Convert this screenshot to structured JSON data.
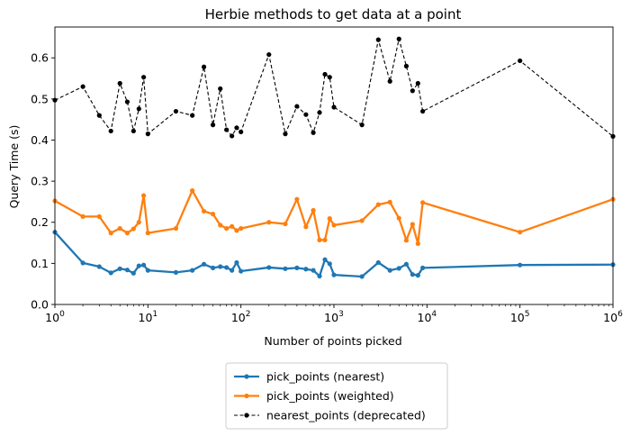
{
  "chart_data": {
    "type": "line",
    "title": "Herbie methods to get data at a point",
    "xlabel": "Number of points picked",
    "ylabel": "Query Time (s)",
    "xscale": "log",
    "xlim": [
      1,
      1000000
    ],
    "ylim": [
      0,
      0.675
    ],
    "grid": false,
    "legend_position": "below-center",
    "xticks": [
      {
        "value": 1,
        "base": "10",
        "exp": "0"
      },
      {
        "value": 10,
        "base": "10",
        "exp": "1"
      },
      {
        "value": 100,
        "base": "10",
        "exp": "2"
      },
      {
        "value": 1000,
        "base": "10",
        "exp": "3"
      },
      {
        "value": 10000,
        "base": "10",
        "exp": "4"
      },
      {
        "value": 100000,
        "base": "10",
        "exp": "5"
      },
      {
        "value": 1000000,
        "base": "10",
        "exp": "6"
      }
    ],
    "yticks": [
      {
        "value": 0,
        "label": "0.0"
      },
      {
        "value": 0.1,
        "label": "0.1"
      },
      {
        "value": 0.2,
        "label": "0.2"
      },
      {
        "value": 0.3,
        "label": "0.3"
      },
      {
        "value": 0.4,
        "label": "0.4"
      },
      {
        "value": 0.5,
        "label": "0.5"
      },
      {
        "value": 0.6,
        "label": "0.6"
      }
    ],
    "series": [
      {
        "name": "pick_points (nearest)",
        "color": "#1f77b4",
        "style": "solid",
        "points": [
          [
            1,
            0.176
          ],
          [
            2,
            0.101
          ],
          [
            3,
            0.092
          ],
          [
            4,
            0.077
          ],
          [
            5,
            0.087
          ],
          [
            6,
            0.084
          ],
          [
            7,
            0.076
          ],
          [
            8,
            0.094
          ],
          [
            9,
            0.096
          ],
          [
            10,
            0.083
          ],
          [
            20,
            0.078
          ],
          [
            30,
            0.083
          ],
          [
            40,
            0.098
          ],
          [
            50,
            0.089
          ],
          [
            60,
            0.092
          ],
          [
            70,
            0.09
          ],
          [
            80,
            0.083
          ],
          [
            90,
            0.102
          ],
          [
            100,
            0.081
          ],
          [
            200,
            0.09
          ],
          [
            300,
            0.087
          ],
          [
            400,
            0.089
          ],
          [
            500,
            0.086
          ],
          [
            600,
            0.083
          ],
          [
            700,
            0.069
          ],
          [
            800,
            0.109
          ],
          [
            900,
            0.099
          ],
          [
            1000,
            0.072
          ],
          [
            2000,
            0.068
          ],
          [
            3000,
            0.102
          ],
          [
            4000,
            0.083
          ],
          [
            5000,
            0.088
          ],
          [
            6000,
            0.098
          ],
          [
            7000,
            0.073
          ],
          [
            8000,
            0.071
          ],
          [
            9000,
            0.089
          ],
          [
            100000,
            0.096
          ],
          [
            1000000,
            0.097
          ]
        ]
      },
      {
        "name": "pick_points (weighted)",
        "color": "#ff7f0e",
        "style": "solid",
        "points": [
          [
            1,
            0.252
          ],
          [
            2,
            0.214
          ],
          [
            3,
            0.214
          ],
          [
            4,
            0.174
          ],
          [
            5,
            0.185
          ],
          [
            6,
            0.174
          ],
          [
            7,
            0.184
          ],
          [
            8,
            0.2
          ],
          [
            9,
            0.265
          ],
          [
            10,
            0.174
          ],
          [
            20,
            0.185
          ],
          [
            30,
            0.277
          ],
          [
            40,
            0.227
          ],
          [
            50,
            0.22
          ],
          [
            60,
            0.193
          ],
          [
            70,
            0.185
          ],
          [
            80,
            0.19
          ],
          [
            90,
            0.18
          ],
          [
            100,
            0.185
          ],
          [
            200,
            0.2
          ],
          [
            300,
            0.196
          ],
          [
            400,
            0.256
          ],
          [
            500,
            0.189
          ],
          [
            600,
            0.229
          ],
          [
            700,
            0.157
          ],
          [
            800,
            0.157
          ],
          [
            900,
            0.209
          ],
          [
            1000,
            0.193
          ],
          [
            2000,
            0.204
          ],
          [
            3000,
            0.243
          ],
          [
            4000,
            0.249
          ],
          [
            5000,
            0.21
          ],
          [
            6000,
            0.156
          ],
          [
            7000,
            0.195
          ],
          [
            8000,
            0.148
          ],
          [
            9000,
            0.248
          ],
          [
            100000,
            0.176
          ],
          [
            1000000,
            0.256
          ]
        ]
      },
      {
        "name": "nearest_points (deprecated)",
        "color": "#000000",
        "style": "dashed",
        "points": [
          [
            1,
            0.497
          ],
          [
            2,
            0.53
          ],
          [
            3,
            0.46
          ],
          [
            4,
            0.422
          ],
          [
            5,
            0.538
          ],
          [
            6,
            0.493
          ],
          [
            7,
            0.422
          ],
          [
            8,
            0.476
          ],
          [
            9,
            0.553
          ],
          [
            10,
            0.415
          ],
          [
            20,
            0.47
          ],
          [
            30,
            0.46
          ],
          [
            40,
            0.578
          ],
          [
            50,
            0.437
          ],
          [
            60,
            0.525
          ],
          [
            70,
            0.425
          ],
          [
            80,
            0.41
          ],
          [
            90,
            0.43
          ],
          [
            100,
            0.42
          ],
          [
            200,
            0.608
          ],
          [
            300,
            0.415
          ],
          [
            400,
            0.482
          ],
          [
            500,
            0.462
          ],
          [
            600,
            0.418
          ],
          [
            700,
            0.467
          ],
          [
            800,
            0.56
          ],
          [
            900,
            0.553
          ],
          [
            1000,
            0.48
          ],
          [
            2000,
            0.437
          ],
          [
            3000,
            0.644
          ],
          [
            4000,
            0.543
          ],
          [
            5000,
            0.646
          ],
          [
            6000,
            0.58
          ],
          [
            7000,
            0.52
          ],
          [
            8000,
            0.538
          ],
          [
            9000,
            0.47
          ],
          [
            100000,
            0.593
          ],
          [
            1000000,
            0.409
          ]
        ]
      }
    ]
  }
}
